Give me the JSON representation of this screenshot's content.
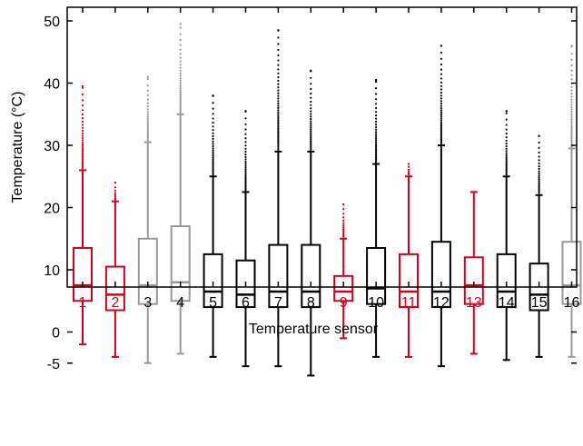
{
  "chart_data": {
    "type": "boxplot",
    "xlabel": "Temperature sensor",
    "ylabel": "Temperature (°C)",
    "ylim": [
      -5,
      52
    ],
    "yticks": [
      -5,
      0,
      10,
      20,
      30,
      40,
      50
    ],
    "grid": false,
    "legend": "none",
    "colors": {
      "red": "#d6001c",
      "gray": "#999999",
      "black": "#000000"
    },
    "boxes": [
      {
        "label": "1",
        "color": "red",
        "whisker_low": -2.0,
        "q1": 5.0,
        "median": 7.5,
        "q3": 13.5,
        "whisker_high": 26.0,
        "outlier_max": 39.5
      },
      {
        "label": "2",
        "color": "red",
        "whisker_low": -4.0,
        "q1": 3.5,
        "median": 6.0,
        "q3": 10.5,
        "whisker_high": 21.0,
        "outlier_max": 24.0
      },
      {
        "label": "3",
        "color": "gray",
        "whisker_low": -5.0,
        "q1": 4.5,
        "median": 7.5,
        "q3": 15.0,
        "whisker_high": 30.5,
        "outlier_max": 41.0
      },
      {
        "label": "4",
        "color": "gray",
        "whisker_low": -3.5,
        "q1": 5.0,
        "median": 8.0,
        "q3": 17.0,
        "whisker_high": 35.0,
        "outlier_max": 49.5
      },
      {
        "label": "5",
        "color": "black",
        "whisker_low": -4.0,
        "q1": 4.0,
        "median": 6.5,
        "q3": 12.5,
        "whisker_high": 25.0,
        "outlier_max": 38.0
      },
      {
        "label": "6",
        "color": "black",
        "whisker_low": -5.5,
        "q1": 4.0,
        "median": 6.0,
        "q3": 11.5,
        "whisker_high": 22.5,
        "outlier_max": 35.5
      },
      {
        "label": "7",
        "color": "black",
        "whisker_low": -5.5,
        "q1": 4.0,
        "median": 6.5,
        "q3": 14.0,
        "whisker_high": 29.0,
        "outlier_max": 48.5
      },
      {
        "label": "8",
        "color": "black",
        "whisker_low": -7.0,
        "q1": 4.0,
        "median": 6.5,
        "q3": 14.0,
        "whisker_high": 29.0,
        "outlier_max": 42.0
      },
      {
        "label": "9",
        "color": "red",
        "whisker_low": -1.0,
        "q1": 5.0,
        "median": 6.5,
        "q3": 9.0,
        "whisker_high": 15.0,
        "outlier_max": 20.5
      },
      {
        "label": "10",
        "color": "black",
        "whisker_low": -4.0,
        "q1": 4.5,
        "median": 7.0,
        "q3": 13.5,
        "whisker_high": 27.0,
        "outlier_max": 40.5
      },
      {
        "label": "11",
        "color": "red",
        "whisker_low": -4.0,
        "q1": 4.0,
        "median": 6.5,
        "q3": 12.5,
        "whisker_high": 25.0,
        "outlier_max": 27.0
      },
      {
        "label": "12",
        "color": "black",
        "whisker_low": -5.5,
        "q1": 4.0,
        "median": 6.5,
        "q3": 14.5,
        "whisker_high": 30.0,
        "outlier_max": 46.0
      },
      {
        "label": "13",
        "color": "red",
        "whisker_low": -3.5,
        "q1": 4.5,
        "median": 7.5,
        "q3": 12.0,
        "whisker_high": 22.5,
        "outlier_max": null
      },
      {
        "label": "14",
        "color": "black",
        "whisker_low": -4.5,
        "q1": 4.0,
        "median": 6.5,
        "q3": 12.5,
        "whisker_high": 25.0,
        "outlier_max": 35.5
      },
      {
        "label": "15",
        "color": "black",
        "whisker_low": -4.0,
        "q1": 3.5,
        "median": 6.0,
        "q3": 11.0,
        "whisker_high": 22.0,
        "outlier_max": 31.5
      },
      {
        "label": "16",
        "color": "gray",
        "whisker_low": -4.0,
        "q1": 4.5,
        "median": 7.5,
        "q3": 14.5,
        "whisker_high": 29.5,
        "outlier_max": 46.0
      }
    ]
  }
}
